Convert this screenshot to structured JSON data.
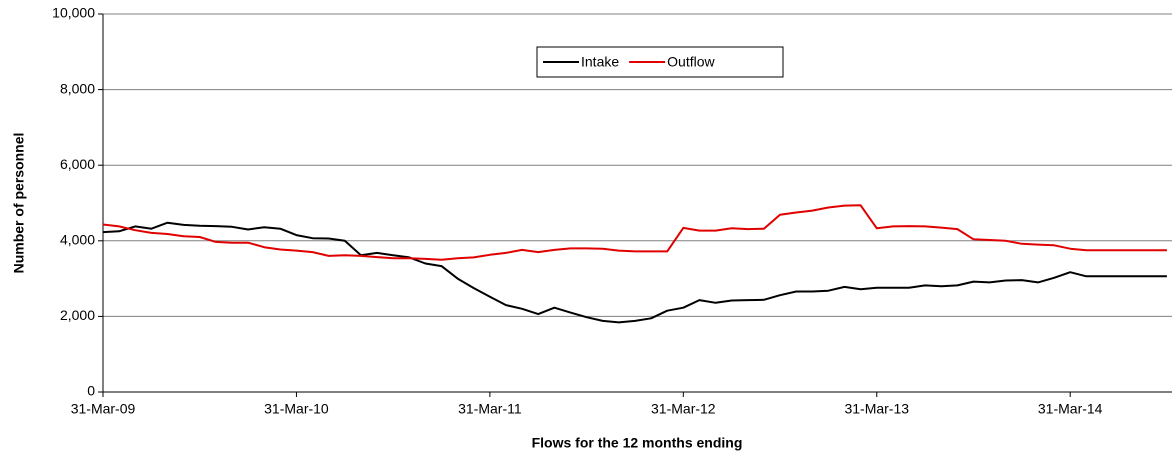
{
  "chart_data": {
    "type": "line",
    "x_label": "Flows for the 12 months ending",
    "y_label": "Number of personnel",
    "categories": [
      "31-Mar-09",
      null,
      null,
      null,
      null,
      null,
      null,
      null,
      null,
      null,
      null,
      null,
      "31-Mar-10",
      null,
      null,
      null,
      null,
      null,
      null,
      null,
      null,
      null,
      null,
      null,
      "31-Mar-11",
      null,
      null,
      null,
      null,
      null,
      null,
      null,
      null,
      null,
      null,
      null,
      "31-Mar-12",
      null,
      null,
      null,
      null,
      null,
      null,
      null,
      null,
      null,
      null,
      null,
      "31-Mar-13",
      null,
      null,
      null,
      null,
      null,
      null,
      null,
      null,
      null,
      null,
      null,
      "31-Mar-14",
      null,
      null,
      null,
      null,
      null,
      null
    ],
    "series": [
      {
        "name": "Intake",
        "color": "#000000",
        "values": [
          4230,
          4250,
          4380,
          4320,
          4480,
          4420,
          4400,
          4390,
          4370,
          4300,
          4360,
          4320,
          4150,
          4070,
          4060,
          4000,
          3620,
          3680,
          3620,
          3560,
          3400,
          3330,
          3000,
          2750,
          2520,
          2300,
          2200,
          2060,
          2230,
          2100,
          1980,
          1880,
          1840,
          1880,
          1950,
          2150,
          2230,
          2430,
          2360,
          2420,
          2430,
          2440,
          2560,
          2660,
          2660,
          2680,
          2780,
          2720,
          2760,
          2760,
          2760,
          2820,
          2800,
          2820,
          2920,
          2900,
          2950,
          2960,
          2900,
          3020,
          3170,
          3060,
          3060,
          3060,
          3060,
          3060,
          3060
        ]
      },
      {
        "name": "Outflow",
        "color": "#e00000",
        "values": [
          4430,
          4380,
          4280,
          4210,
          4180,
          4120,
          4100,
          3970,
          3950,
          3950,
          3830,
          3770,
          3740,
          3700,
          3600,
          3620,
          3600,
          3570,
          3540,
          3540,
          3520,
          3500,
          3540,
          3560,
          3630,
          3680,
          3760,
          3700,
          3760,
          3800,
          3800,
          3790,
          3740,
          3720,
          3720,
          3720,
          4340,
          4270,
          4270,
          4330,
          4310,
          4320,
          4690,
          4750,
          4800,
          4880,
          4930,
          4940,
          4330,
          4380,
          4390,
          4380,
          4350,
          4310,
          4040,
          4020,
          4000,
          3920,
          3900,
          3880,
          3790,
          3750,
          3750,
          3750,
          3750,
          3750,
          3750
        ]
      }
    ],
    "ylim": [
      0,
      10000
    ],
    "yticks": [
      0,
      {
        "value": 2000,
        "label": "2,000"
      },
      {
        "value": 4000,
        "label": "4,000"
      },
      {
        "value": 6000,
        "label": "6,000"
      },
      {
        "value": 8000,
        "label": "8,000"
      },
      {
        "value": 10000,
        "label": "10,000"
      }
    ],
    "grid": true,
    "legend": "top"
  }
}
